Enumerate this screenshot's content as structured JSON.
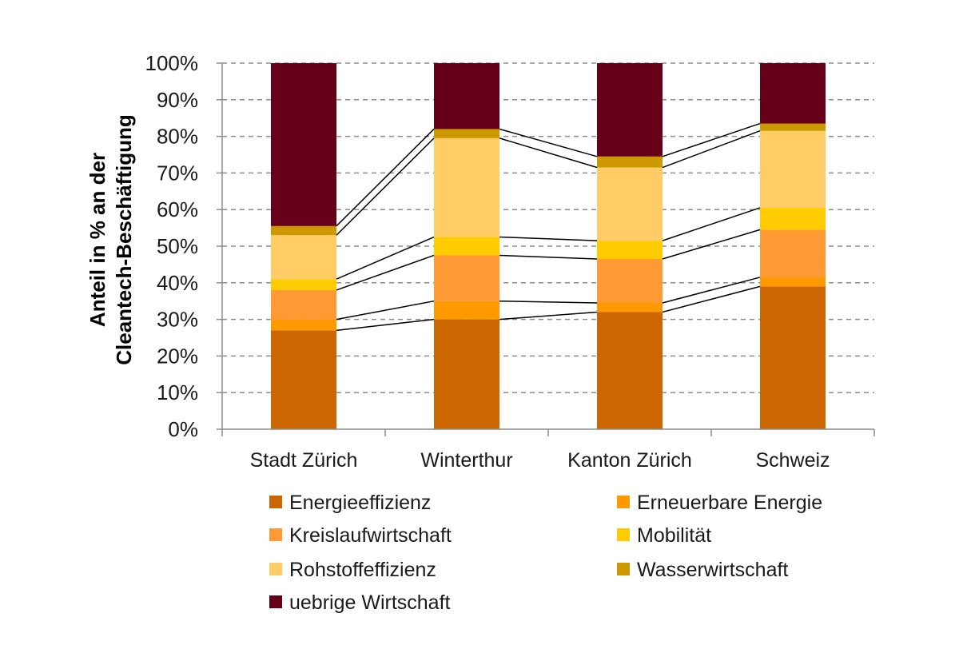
{
  "chart_data": {
    "type": "bar",
    "stacked": true,
    "percent_stacked": true,
    "categories": [
      "Stadt Zürich",
      "Winterthur",
      "Kanton Zürich",
      "Schweiz"
    ],
    "series": [
      {
        "name": "Energieeffizienz",
        "color": "#cc6600",
        "values": [
          27,
          30,
          32,
          39
        ]
      },
      {
        "name": "Erneuerbare Energie",
        "color": "#ff9900",
        "values": [
          3,
          5,
          2.5,
          2.5
        ]
      },
      {
        "name": "Kreislaufwirtschaft",
        "color": "#ff9933",
        "values": [
          8,
          12.5,
          12,
          13
        ]
      },
      {
        "name": "Mobilität",
        "color": "#ffcc00",
        "values": [
          3,
          5,
          5,
          6
        ]
      },
      {
        "name": "Rohstoffeffizienz",
        "color": "#ffcc66",
        "values": [
          12,
          27,
          20,
          21
        ]
      },
      {
        "name": "Wasserwirtschaft",
        "color": "#cc9900",
        "values": [
          2.5,
          2.5,
          3,
          2
        ]
      },
      {
        "name": "uebrige Wirtschaft",
        "color": "#660019",
        "values": [
          44.5,
          18,
          25.5,
          16.5
        ]
      }
    ],
    "ylabel_lines": [
      "Anteil in % an der",
      "Cleantech-Beschäftigung"
    ],
    "yticks": [
      "0%",
      "10%",
      "20%",
      "30%",
      "40%",
      "50%",
      "60%",
      "70%",
      "80%",
      "90%",
      "100%"
    ],
    "ylim": [
      0,
      100
    ],
    "grid": "dashed horizontal",
    "legend": "bottom, two columns",
    "series_lines": true
  }
}
